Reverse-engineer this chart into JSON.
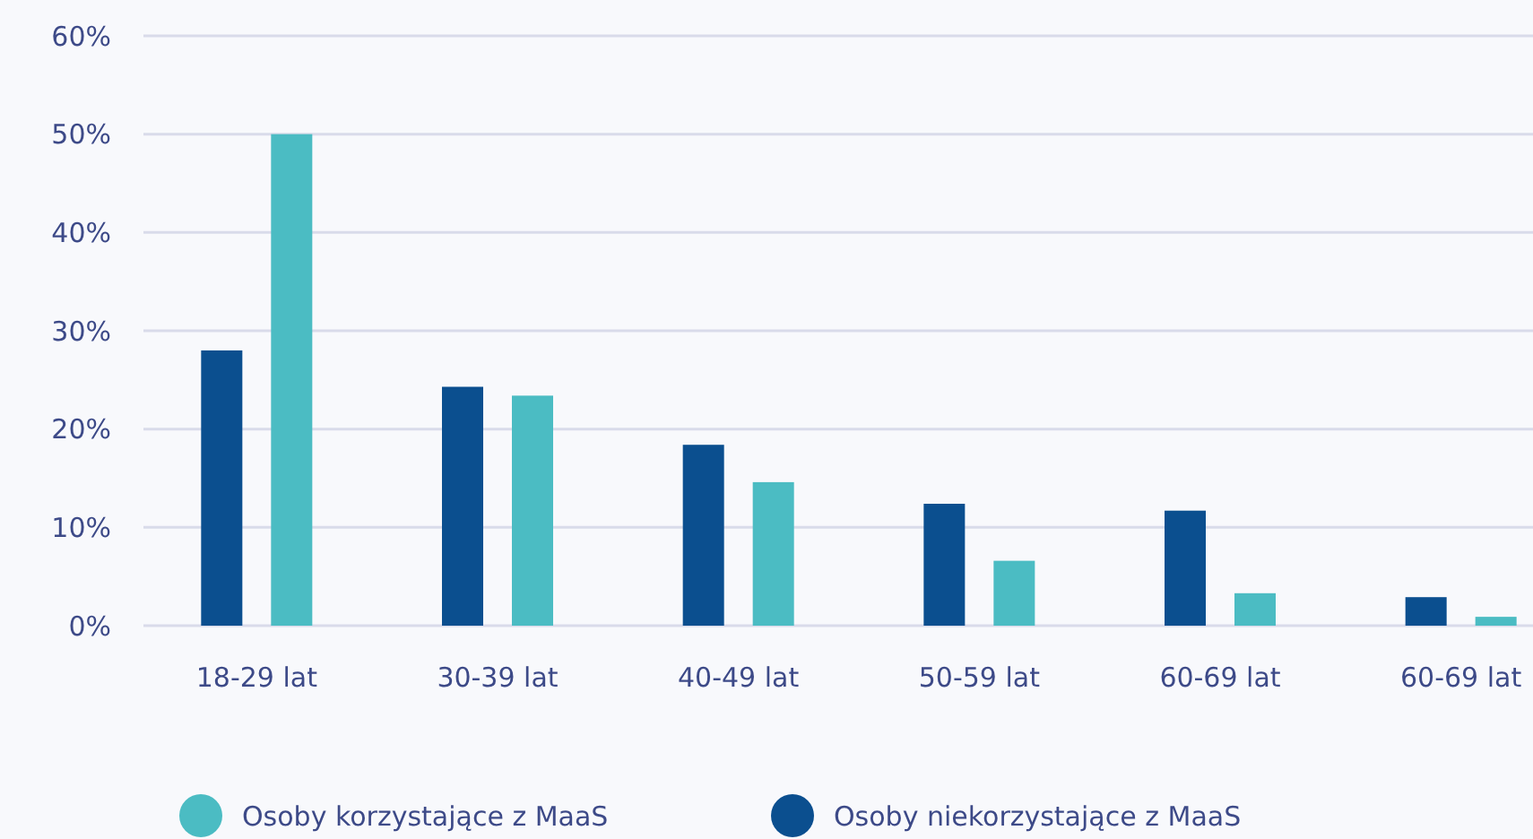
{
  "chart_data": {
    "type": "bar",
    "categories": [
      "18-29 lat",
      "30-39 lat",
      "40-49 lat",
      "50-59 lat",
      "60-69 lat",
      "60-69 lat"
    ],
    "series": [
      {
        "name": "Osoby niekorzystające z MaaS",
        "color": "#0b4f8f",
        "values": [
          28,
          24.3,
          18.4,
          12.4,
          11.7,
          2.9
        ]
      },
      {
        "name": "Osoby korzystające z MaaS",
        "color": "#4bbcc3",
        "values": [
          50,
          23.4,
          14.6,
          6.6,
          3.3,
          0.9
        ]
      }
    ],
    "ylim": [
      0,
      60
    ],
    "yticks": [
      {
        "value": 0,
        "label": "0%"
      },
      {
        "value": 10,
        "label": "10%"
      },
      {
        "value": 20,
        "label": "20%"
      },
      {
        "value": 30,
        "label": "30%"
      },
      {
        "value": 40,
        "label": "40%"
      },
      {
        "value": 50,
        "label": "50%"
      },
      {
        "value": 60,
        "label": "60%"
      }
    ],
    "grid": "y",
    "legend": "bottom left"
  }
}
